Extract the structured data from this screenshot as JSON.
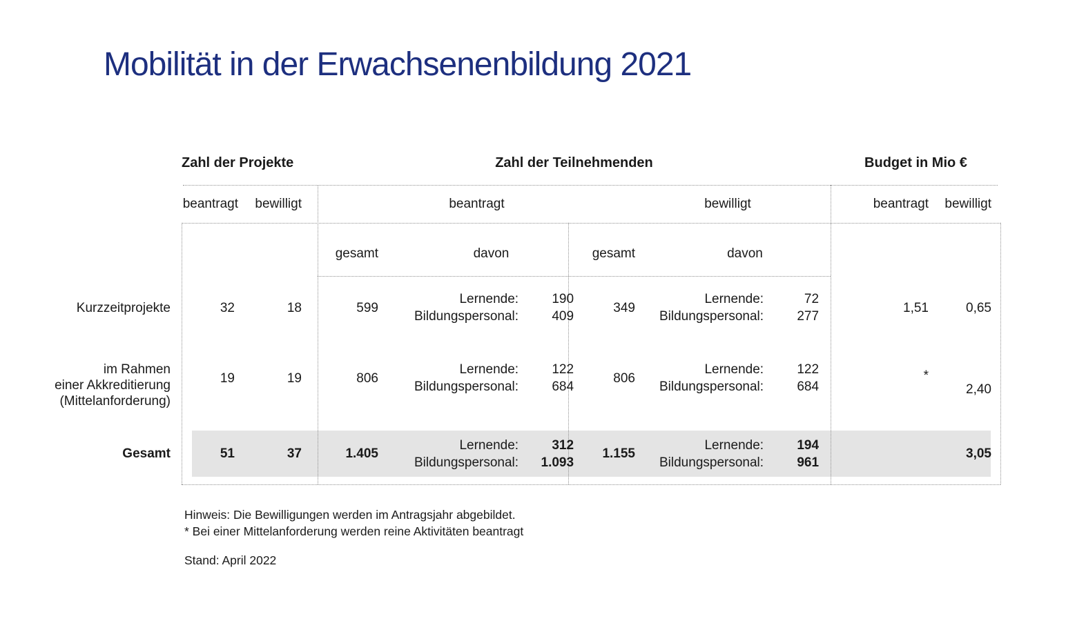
{
  "title": "Mobilität in der Erwachsenenbildung 2021",
  "colors": {
    "title_blue": "#1d2f7f",
    "text": "#1a1a1a",
    "total_row_highlight": "#e4e4e4",
    "grid_line": "#8f8f8f"
  },
  "header": {
    "projects": "Zahl der Projekte",
    "participants": "Zahl der Teilnehmenden",
    "budget": "Budget in Mio €",
    "beantragt": "beantragt",
    "bewilligt": "bewilligt",
    "gesamt": "gesamt",
    "davon": "davon"
  },
  "labels": {
    "lernende": "Lernende:",
    "bildungspersonal": "Bildungspersonal:"
  },
  "rows": [
    {
      "name": [
        "Kurzzeitprojekte"
      ],
      "projekte": {
        "beantragt": "32",
        "bewilligt": "18"
      },
      "teilnehmende": {
        "beantragt": {
          "gesamt": "599",
          "lernende": "190",
          "bildungspersonal": "409"
        },
        "bewilligt": {
          "gesamt": "349",
          "lernende": "72",
          "bildungspersonal": "277"
        }
      },
      "budget": {
        "beantragt": "1,51",
        "bewilligt": "0,65"
      }
    },
    {
      "name": [
        "im Rahmen",
        "einer Akkreditierung",
        "(Mittelanforderung)"
      ],
      "projekte": {
        "beantragt": "19",
        "bewilligt": "19"
      },
      "teilnehmende": {
        "beantragt": {
          "gesamt": "806",
          "lernende": "122",
          "bildungspersonal": "684"
        },
        "bewilligt": {
          "gesamt": "806",
          "lernende": "122",
          "bildungspersonal": "684"
        }
      },
      "budget": {
        "beantragt": "*",
        "bewilligt": "2,40"
      }
    },
    {
      "name": [
        "Gesamt"
      ],
      "projekte": {
        "beantragt": "51",
        "bewilligt": "37"
      },
      "teilnehmende": {
        "beantragt": {
          "gesamt": "1.405",
          "lernende": "312",
          "bildungspersonal": "1.093"
        },
        "bewilligt": {
          "gesamt": "1.155",
          "lernende": "194",
          "bildungspersonal": "961"
        }
      },
      "budget": {
        "beantragt": "",
        "bewilligt": "3,05"
      }
    }
  ],
  "footnotes": {
    "hinweis": "Hinweis: Die Bewilligungen werden im Antragsjahr abgebildet.",
    "asterisk_note": "* Bei einer Mittelanforderung werden reine Aktivitäten beantragt",
    "stand": "Stand: April 2022"
  }
}
